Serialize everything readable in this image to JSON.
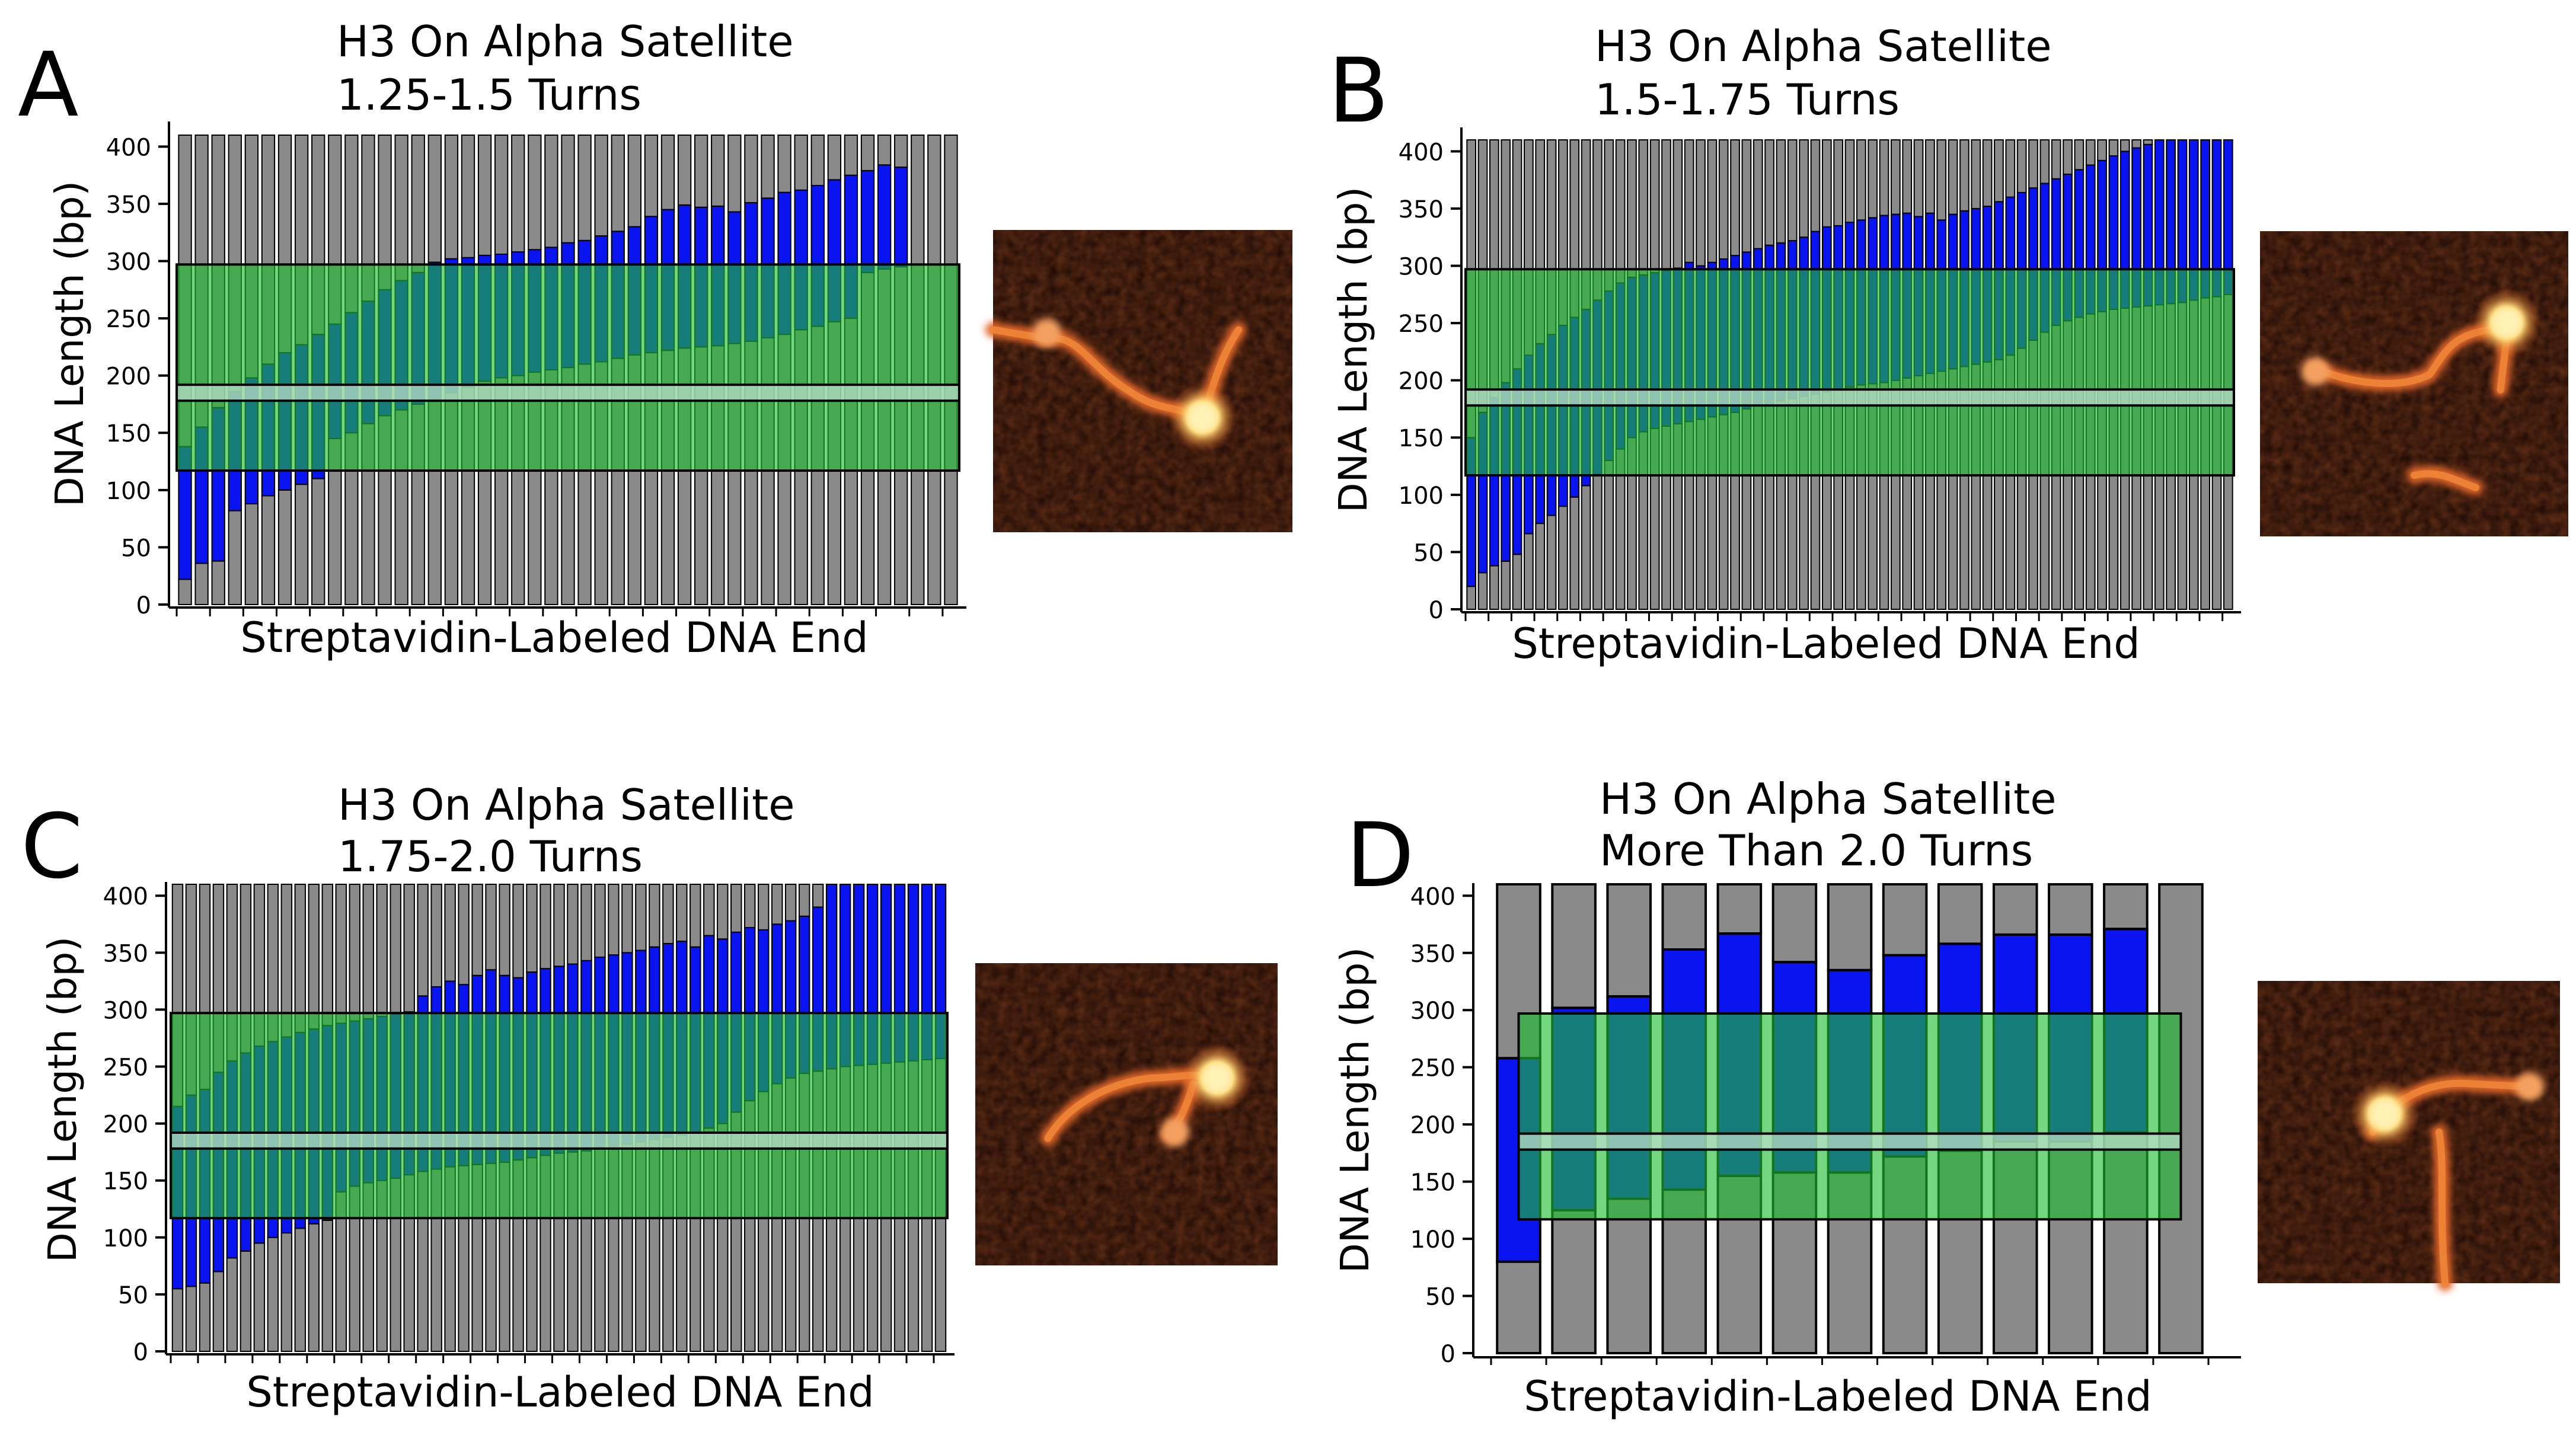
{
  "figure": {
    "panels": [
      {
        "letter": "A",
        "title_lines": [
          "H3 On Alpha Satellite",
          "1.25-1.5 Turns"
        ],
        "xlabel": "Streptavidin-Labeled DNA End",
        "ylabel": "DNA Length (bp)",
        "yticks": [
          0,
          50,
          100,
          150,
          200,
          250,
          300,
          350,
          400
        ],
        "afm_image": "afm-micrograph-two-arm-dna-with-bright-nucleosome"
      },
      {
        "letter": "B",
        "title_lines": [
          "H3 On Alpha Satellite",
          "1.5-1.75 Turns"
        ],
        "xlabel": "Streptavidin-Labeled DNA End",
        "ylabel": "DNA Length (bp)",
        "yticks": [
          0,
          50,
          100,
          150,
          200,
          250,
          300,
          350,
          400
        ],
        "afm_image": "afm-micrograph-s-shaped-dna-with-bright-nucleosome"
      },
      {
        "letter": "C",
        "title_lines": [
          "H3 On Alpha Satellite",
          "1.75-2.0 Turns"
        ],
        "xlabel": "Streptavidin-Labeled DNA End",
        "ylabel": "DNA Length (bp)",
        "yticks": [
          0,
          50,
          100,
          150,
          200,
          250,
          300,
          350,
          400
        ],
        "afm_image": "afm-micrograph-curled-dna-with-bright-nucleosome"
      },
      {
        "letter": "D",
        "title_lines": [
          "H3 On Alpha Satellite",
          "More Than 2.0 Turns"
        ],
        "xlabel": "Streptavidin-Labeled DNA End",
        "ylabel": "DNA Length (bp)",
        "yticks": [
          0,
          50,
          100,
          150,
          200,
          250,
          300,
          350,
          400
        ],
        "afm_image": "afm-micrograph-hooked-dna-with-bright-nucleosome"
      }
    ]
  },
  "colors": {
    "free_dna": "#8a8a8a",
    "wrapped": "#0a14f0",
    "positioning_region": "#1fbf32",
    "dyad_band": "#b8dcc8",
    "outline": "#000000",
    "afm_background": "#1a0804",
    "afm_strand": "#e2682a",
    "afm_core": "#fff0b4"
  },
  "chart_data": [
    {
      "type": "bar",
      "stacked": true,
      "panel": "A",
      "title": "H3 On Alpha Satellite 1.25-1.5 Turns",
      "xlabel": "Streptavidin-Labeled DNA End",
      "ylabel": "DNA Length (bp)",
      "ylim": [
        0,
        410
      ],
      "total_length": 410,
      "positioning_region": [
        117,
        297
      ],
      "dyad_band": [
        178,
        192
      ],
      "grid": false,
      "legend": "none",
      "segments_order": [
        "free DNA (start)",
        "wrapped DNA",
        "free DNA (end)"
      ],
      "wrap_start": [
        22,
        36,
        38,
        82,
        88,
        95,
        100,
        105,
        110,
        145,
        150,
        158,
        165,
        170,
        175,
        180,
        185,
        190,
        195,
        198,
        200,
        203,
        205,
        207,
        210,
        212,
        215,
        218,
        220,
        222,
        224,
        225,
        226,
        228,
        230,
        233,
        236,
        240,
        243,
        247,
        250,
        290,
        293,
        295,
        410,
        410,
        410
      ],
      "wrap_end": [
        138,
        155,
        172,
        186,
        198,
        210,
        220,
        227,
        236,
        245,
        255,
        265,
        275,
        283,
        290,
        299,
        302,
        303,
        305,
        306,
        308,
        310,
        312,
        316,
        318,
        322,
        326,
        330,
        339,
        345,
        349,
        347,
        348,
        343,
        351,
        355,
        360,
        362,
        366,
        371,
        375,
        379,
        384,
        382,
        410,
        410,
        410
      ]
    },
    {
      "type": "bar",
      "stacked": true,
      "panel": "B",
      "title": "H3 On Alpha Satellite 1.5-1.75 Turns",
      "xlabel": "Streptavidin-Labeled DNA End",
      "ylabel": "DNA Length (bp)",
      "ylim": [
        0,
        410
      ],
      "total_length": 410,
      "positioning_region": [
        117,
        297
      ],
      "dyad_band": [
        178,
        192
      ],
      "grid": false,
      "legend": "none",
      "segments_order": [
        "free DNA (start)",
        "wrapped DNA",
        "free DNA (end)"
      ],
      "wrap_start": [
        20,
        32,
        38,
        42,
        48,
        66,
        75,
        82,
        90,
        98,
        108,
        118,
        130,
        140,
        150,
        155,
        158,
        160,
        162,
        164,
        166,
        168,
        170,
        172,
        175,
        178,
        180,
        182,
        184,
        186,
        188,
        190,
        192,
        194,
        196,
        197,
        198,
        200,
        202,
        204,
        206,
        208,
        210,
        212,
        214,
        216,
        218,
        222,
        228,
        235,
        242,
        248,
        252,
        255,
        258,
        260,
        262,
        263,
        264,
        265,
        266,
        267,
        268,
        270,
        272,
        273,
        275
      ],
      "wrap_end": [
        150,
        172,
        185,
        198,
        210,
        222,
        232,
        240,
        248,
        255,
        262,
        270,
        278,
        285,
        290,
        292,
        294,
        296,
        298,
        303,
        300,
        303,
        306,
        309,
        312,
        315,
        318,
        320,
        322,
        325,
        330,
        334,
        335,
        338,
        340,
        342,
        344,
        345,
        346,
        343,
        346,
        340,
        345,
        348,
        350,
        352,
        356,
        360,
        364,
        368,
        372,
        376,
        380,
        384,
        388,
        392,
        396,
        400,
        403,
        406,
        410,
        410,
        410,
        410,
        410,
        410,
        410
      ]
    },
    {
      "type": "bar",
      "stacked": true,
      "panel": "C",
      "title": "H3 On Alpha Satellite 1.75-2.0 Turns",
      "xlabel": "Streptavidin-Labeled DNA End",
      "ylabel": "DNA Length (bp)",
      "ylim": [
        0,
        410
      ],
      "total_length": 410,
      "positioning_region": [
        117,
        297
      ],
      "dyad_band": [
        178,
        192
      ],
      "grid": false,
      "legend": "none",
      "segments_order": [
        "free DNA (start)",
        "wrapped DNA",
        "free DNA (end)"
      ],
      "wrap_start": [
        55,
        57,
        60,
        70,
        82,
        88,
        95,
        100,
        104,
        108,
        112,
        115,
        140,
        145,
        148,
        150,
        152,
        155,
        158,
        160,
        162,
        163,
        164,
        165,
        166,
        168,
        170,
        172,
        174,
        175,
        176,
        178,
        180,
        182,
        184,
        186,
        188,
        190,
        192,
        196,
        200,
        210,
        220,
        228,
        235,
        240,
        244,
        246,
        248,
        250,
        251,
        252,
        253,
        254,
        255,
        256,
        257
      ],
      "wrap_end": [
        215,
        225,
        230,
        245,
        255,
        262,
        268,
        272,
        276,
        280,
        283,
        286,
        288,
        290,
        292,
        294,
        296,
        298,
        312,
        320,
        325,
        322,
        330,
        335,
        330,
        328,
        333,
        336,
        338,
        340,
        343,
        346,
        348,
        350,
        352,
        355,
        358,
        360,
        355,
        365,
        362,
        368,
        372,
        370,
        375,
        378,
        382,
        390,
        410,
        410,
        410,
        410,
        410,
        410,
        410,
        410,
        410
      ]
    },
    {
      "type": "bar",
      "stacked": true,
      "panel": "D",
      "title": "H3 On Alpha Satellite More Than 2.0 Turns",
      "xlabel": "Streptavidin-Labeled DNA End",
      "ylabel": "DNA Length (bp)",
      "ylim": [
        0,
        410
      ],
      "total_length": 410,
      "positioning_region": [
        117,
        297
      ],
      "dyad_band": [
        178,
        192
      ],
      "grid": false,
      "legend": "none",
      "segments_order": [
        "free DNA (start)",
        "wrapped DNA",
        "free DNA (end)"
      ],
      "wrap_start": [
        80,
        125,
        135,
        143,
        155,
        158,
        158,
        172,
        177,
        185,
        185,
        193,
        410
      ],
      "wrap_end": [
        258,
        302,
        312,
        353,
        367,
        342,
        335,
        348,
        358,
        366,
        366,
        371,
        410
      ]
    }
  ]
}
